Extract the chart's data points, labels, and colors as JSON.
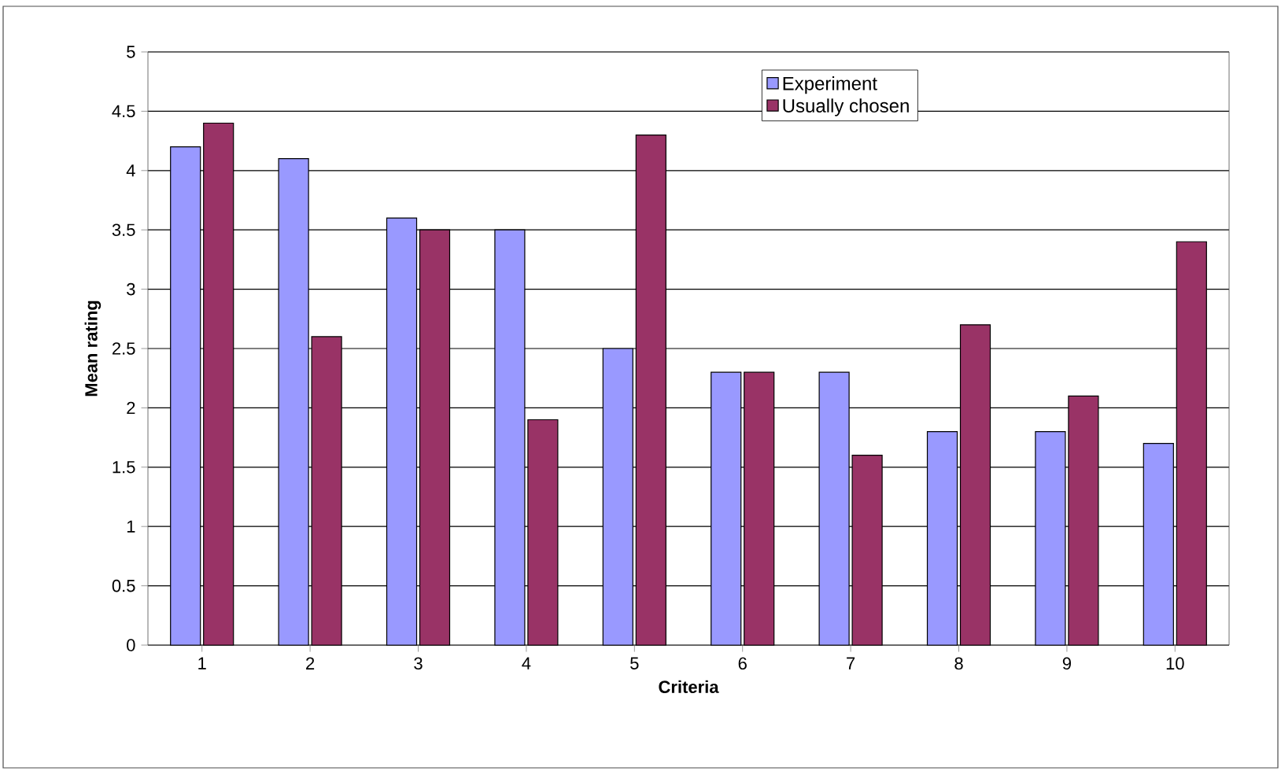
{
  "chart_data": {
    "type": "bar",
    "xlabel": "Criteria",
    "ylabel": "Mean rating",
    "categories": [
      "1",
      "2",
      "3",
      "4",
      "5",
      "6",
      "7",
      "8",
      "9",
      "10"
    ],
    "series": [
      {
        "name": "Experiment",
        "color": "#9999ff",
        "values": [
          4.2,
          4.1,
          3.6,
          3.5,
          2.5,
          2.3,
          2.3,
          1.8,
          1.8,
          1.7
        ]
      },
      {
        "name": "Usually chosen",
        "color": "#993366",
        "values": [
          4.4,
          2.6,
          3.5,
          1.9,
          4.3,
          2.3,
          1.6,
          2.7,
          2.1,
          3.4
        ]
      }
    ],
    "ylim": [
      0,
      5
    ],
    "yticks": [
      0,
      0.5,
      1,
      1.5,
      2,
      2.5,
      3,
      3.5,
      4,
      4.5,
      5
    ],
    "grid": "y",
    "legend": "top"
  }
}
